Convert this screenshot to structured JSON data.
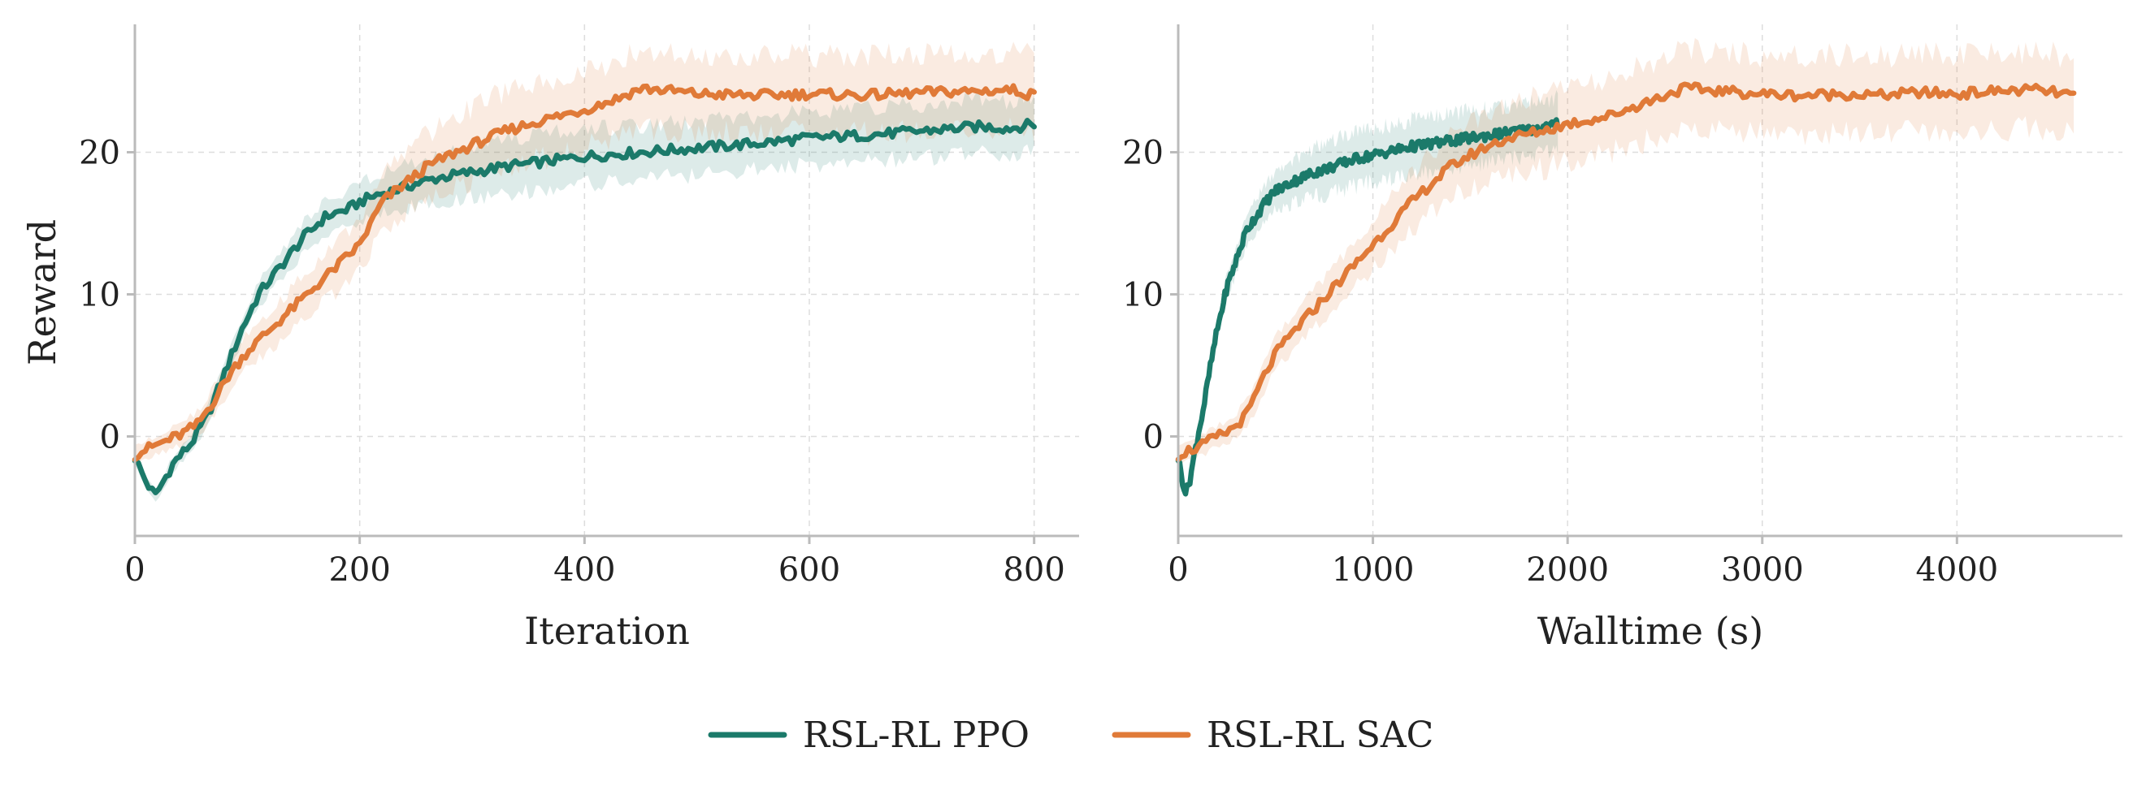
{
  "colors": {
    "ppo": "#1b7a6a",
    "sac": "#e07a38",
    "ppo_band": "#1b7a6a",
    "sac_band": "#e07a38",
    "axis": "#bbbbbb",
    "grid": "#dddddd"
  },
  "legend": {
    "items": [
      {
        "label": "RSL-RL PPO",
        "color": "#1b7a6a"
      },
      {
        "label": "RSL-RL SAC",
        "color": "#e07a38"
      }
    ]
  },
  "chart_data": [
    {
      "type": "line",
      "xlabel": "Iteration",
      "ylabel": "Reward",
      "xlim": [
        0,
        840
      ],
      "ylim": [
        -7,
        29
      ],
      "xticks": [
        0,
        200,
        400,
        600,
        800
      ],
      "yticks": [
        0,
        10,
        20
      ],
      "grid": true,
      "series": [
        {
          "name": "RSL-RL PPO",
          "x": [
            0,
            10,
            18,
            25,
            35,
            50,
            65,
            80,
            95,
            110,
            130,
            150,
            170,
            190,
            200,
            215,
            230,
            250,
            270,
            300,
            330,
            360,
            400,
            450,
            500,
            550,
            600,
            650,
            700,
            750,
            780,
            800
          ],
          "y": [
            -1.5,
            -3.2,
            -4.2,
            -3.2,
            -1.8,
            -0.5,
            1.5,
            4.5,
            7.5,
            10,
            12,
            14,
            15.5,
            16,
            16.5,
            17,
            17.3,
            17.8,
            18.2,
            18.6,
            19,
            19.3,
            19.7,
            20,
            20.3,
            20.6,
            21,
            21.2,
            21.5,
            21.8,
            21.7,
            22
          ]
        },
        {
          "name": "RSL-RL SAC",
          "x": [
            0,
            10,
            25,
            40,
            55,
            70,
            85,
            100,
            120,
            140,
            160,
            180,
            200,
            220,
            240,
            260,
            280,
            300,
            330,
            360,
            400,
            430,
            450,
            480,
            500,
            550,
            600,
            650,
            700,
            750,
            780,
            800
          ],
          "y": [
            -1.3,
            -0.9,
            -0.4,
            0.1,
            0.8,
            2.5,
            4.5,
            6,
            7.5,
            9,
            10.5,
            12,
            13.5,
            16.5,
            17.8,
            19,
            19.8,
            20.5,
            21.5,
            22.2,
            23,
            23.8,
            24.5,
            24.3,
            24.1,
            24,
            24.1,
            24,
            24.2,
            24.3,
            24.4,
            24
          ]
        }
      ]
    },
    {
      "type": "line",
      "xlabel": "Walltime (s)",
      "ylabel": "",
      "xlim": [
        0,
        4850
      ],
      "ylim": [
        -7,
        29
      ],
      "xticks": [
        0,
        1000,
        2000,
        3000,
        4000
      ],
      "yticks": [
        0,
        10,
        20
      ],
      "grid": true,
      "series": [
        {
          "name": "RSL-RL PPO",
          "x": [
            0,
            20,
            40,
            60,
            80,
            100,
            130,
            160,
            200,
            250,
            300,
            350,
            400,
            450,
            500,
            600,
            700,
            800,
            900,
            1000,
            1100,
            1200,
            1300,
            1400,
            1500,
            1600,
            1700,
            1800,
            1900,
            1950
          ],
          "y": [
            -1.5,
            -3,
            -4,
            -3,
            -1.5,
            0,
            2,
            4.5,
            7.5,
            10.5,
            12.5,
            14.5,
            15.5,
            16.5,
            17.3,
            18,
            18.6,
            19,
            19.5,
            19.8,
            20.1,
            20.4,
            20.6,
            20.8,
            21,
            21.2,
            21.4,
            21.6,
            21.8,
            22
          ]
        },
        {
          "name": "RSL-RL SAC",
          "x": [
            0,
            50,
            100,
            150,
            200,
            250,
            300,
            350,
            400,
            450,
            500,
            600,
            700,
            800,
            900,
            1000,
            1100,
            1200,
            1300,
            1400,
            1500,
            1600,
            1700,
            1800,
            1900,
            2000,
            2200,
            2400,
            2600,
            2800,
            3000,
            3200,
            3400,
            3600,
            3800,
            4000,
            4200,
            4400,
            4600
          ],
          "y": [
            -1.3,
            -1,
            -0.8,
            -0.4,
            0,
            0.3,
            0.8,
            1.5,
            3,
            4.5,
            5.8,
            7.5,
            9,
            10.5,
            12,
            13.5,
            15,
            16.5,
            17.8,
            19,
            19.8,
            20.5,
            21,
            21.3,
            21.6,
            22,
            22.5,
            23.5,
            24.5,
            24.3,
            24.1,
            24,
            24.1,
            24,
            24.2,
            24.1,
            24.3,
            24.4,
            24
          ]
        }
      ]
    }
  ]
}
